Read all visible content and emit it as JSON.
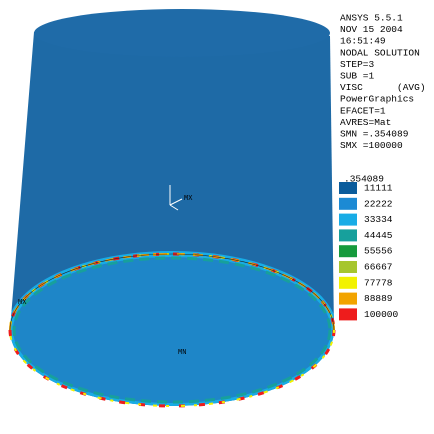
{
  "header": {
    "lines": [
      "ANSYS 5.5.1",
      "NOV 15 2004",
      "16:51:49",
      "NODAL SOLUTION",
      "STEP=3",
      "SUB =1",
      "VISC      (AVG)",
      "PowerGraphics",
      "EFACET=1",
      "AVRES=Mat",
      "SMN =.354089",
      "SMX =100000"
    ]
  },
  "legend": {
    "first_label": ".354089",
    "entries": [
      {
        "label": "11111",
        "color": "#0b5c9c"
      },
      {
        "label": "22222",
        "color": "#1c8ad4"
      },
      {
        "label": "33334",
        "color": "#18ace6"
      },
      {
        "label": "44445",
        "color": "#17a09c"
      },
      {
        "label": "55556",
        "color": "#159a3c"
      },
      {
        "label": "66667",
        "color": "#a6c62e"
      },
      {
        "label": "77778",
        "color": "#f2f200"
      },
      {
        "label": "88889",
        "color": "#f2a400"
      },
      {
        "label": "100000",
        "color": "#ee1c1c"
      }
    ]
  },
  "model_labels": {
    "max_top": "MX",
    "min": "MN",
    "max_edge": "MX"
  }
}
